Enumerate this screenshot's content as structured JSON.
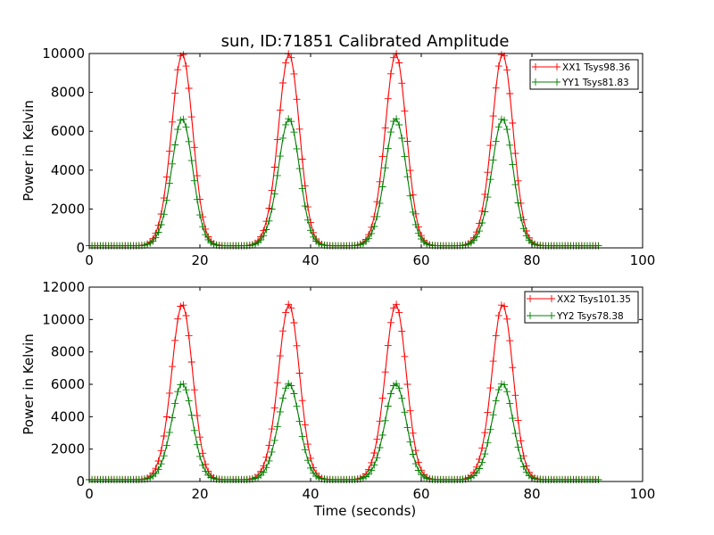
{
  "figure": {
    "title": "sun, ID:71851 Calibrated Amplitude",
    "xlabel": "Time (seconds)"
  },
  "chart_data": [
    {
      "type": "line",
      "title": "sun, ID:71851 Calibrated Amplitude",
      "xlabel": "",
      "ylabel": "Power in Kelvin",
      "xlim": [
        0,
        100
      ],
      "ylim": [
        0,
        10000
      ],
      "xticks": [
        0,
        20,
        40,
        60,
        80,
        100
      ],
      "yticks": [
        0,
        2000,
        4000,
        6000,
        8000,
        10000
      ],
      "legend_position": "top-right",
      "marker": "+",
      "peak_centers": [
        16.8,
        36.1,
        55.4,
        74.7
      ],
      "x_range_sampled": [
        0,
        92
      ],
      "sample_step": 1,
      "series": [
        {
          "name": "XX1 Tsys98.36",
          "color": "#ff0000",
          "baseline": 110,
          "peak": 10000
        },
        {
          "name": "YY1 Tsys81.83",
          "color": "#008000",
          "baseline": 110,
          "peak": 6650
        }
      ]
    },
    {
      "type": "line",
      "title": "",
      "xlabel": "Time (seconds)",
      "ylabel": "Power in Kelvin",
      "xlim": [
        0,
        100
      ],
      "ylim": [
        0,
        12000
      ],
      "xticks": [
        0,
        20,
        40,
        60,
        80,
        100
      ],
      "yticks": [
        0,
        2000,
        4000,
        6000,
        8000,
        10000,
        12000
      ],
      "legend_position": "top-right",
      "marker": "+",
      "peak_centers": [
        16.8,
        36.1,
        55.4,
        74.7
      ],
      "x_range_sampled": [
        0,
        92
      ],
      "sample_step": 1,
      "series": [
        {
          "name": "XX2 Tsys101.35",
          "color": "#ff0000",
          "baseline": 120,
          "peak": 10950
        },
        {
          "name": "YY2 Tsys78.38",
          "color": "#008000",
          "baseline": 110,
          "peak": 6050
        }
      ]
    }
  ]
}
